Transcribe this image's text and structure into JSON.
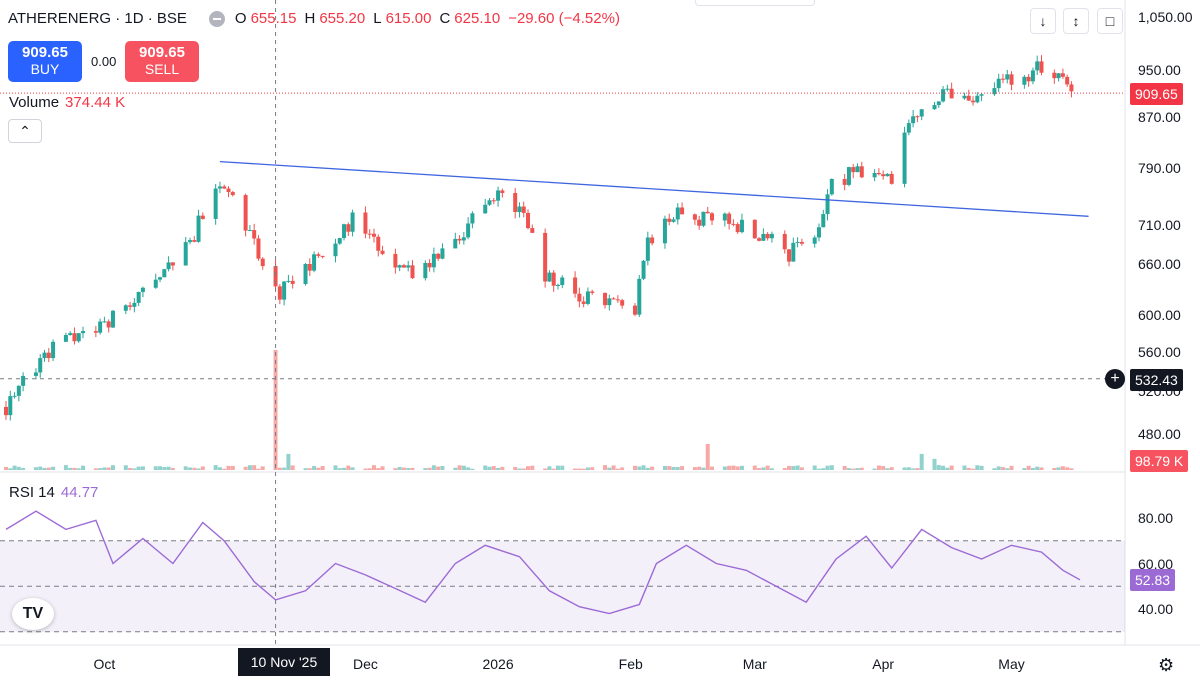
{
  "header": {
    "symbol": "ATHERENERG · 1D · BSE",
    "o_label": "O",
    "o_value": "655.15",
    "h_label": "H",
    "h_value": "655.20",
    "l_label": "L",
    "l_value": "615.00",
    "c_label": "C",
    "c_value": "625.10",
    "change": "−29.60 (−4.52%)"
  },
  "trade": {
    "buy_price": "909.65",
    "buy_label": "BUY",
    "spread": "0.00",
    "sell_price": "909.65",
    "sell_label": "SELL"
  },
  "volume": {
    "label": "Volume",
    "value": "374.44 K"
  },
  "rsi": {
    "label": "RSI 14",
    "value": "44.77"
  },
  "toolbar": {
    "arrow_icon": "arrow-down-icon",
    "collapse_icon": "collapse-icon",
    "restore_icon": "restore-icon"
  },
  "badges": {
    "last_price": "909.65",
    "crosshair_price": "532.43",
    "volume_last": "98.79 K",
    "rsi_last": "52.83",
    "crosshair_date": "10 Nov '25"
  },
  "colors": {
    "up": "#26a69a",
    "down": "#ef5350",
    "rsi": "#9c6ad5",
    "trendline": "#3f66e0",
    "accent": "#2962ff"
  },
  "chart_data": {
    "type": "candlestick",
    "price_axis": {
      "ticks": [
        1050,
        950,
        870,
        790,
        710,
        660,
        600,
        560,
        520,
        480
      ],
      "labels": [
        "1,050.00",
        "950.00",
        "870.00",
        "790.00",
        "710.00",
        "660.00",
        "600.00",
        "560.00",
        "520.00",
        "480.00"
      ],
      "scale": "log"
    },
    "rsi_axis": {
      "ticks": [
        80,
        60,
        40
      ],
      "labels": [
        "80.00",
        "60.00",
        "40.00"
      ],
      "band": [
        30,
        70
      ]
    },
    "time_axis": {
      "labels": [
        "Oct",
        "Dec",
        "2026",
        "Feb",
        "Mar",
        "Apr",
        "May"
      ],
      "dates": [
        "2025-10-01",
        "2025-12-01",
        "2026-01-01",
        "2026-02-01",
        "2026-03-02",
        "2026-04-01",
        "2026-05-01"
      ]
    },
    "waypoints": [
      [
        "2025-09-08",
        505
      ],
      [
        "2025-09-12",
        530
      ],
      [
        "2025-09-18",
        560
      ],
      [
        "2025-09-25",
        578
      ],
      [
        "2025-10-01",
        590
      ],
      [
        "2025-10-08",
        612
      ],
      [
        "2025-10-15",
        650
      ],
      [
        "2025-10-22",
        700
      ],
      [
        "2025-10-27",
        760
      ],
      [
        "2025-10-30",
        750
      ],
      [
        "2025-11-04",
        700
      ],
      [
        "2025-11-07",
        655
      ],
      [
        "2025-11-10",
        625
      ],
      [
        "2025-11-17",
        650
      ],
      [
        "2025-11-24",
        690
      ],
      [
        "2025-11-28",
        715
      ],
      [
        "2025-12-05",
        680
      ],
      [
        "2025-12-12",
        650
      ],
      [
        "2025-12-18",
        665
      ],
      [
        "2025-12-24",
        705
      ],
      [
        "2026-01-01",
        750
      ],
      [
        "2026-01-06",
        735
      ],
      [
        "2026-01-12",
        650
      ],
      [
        "2026-01-20",
        620
      ],
      [
        "2026-01-28",
        615
      ],
      [
        "2026-02-02",
        610
      ],
      [
        "2026-02-05",
        690
      ],
      [
        "2026-02-12",
        722
      ],
      [
        "2026-02-20",
        718
      ],
      [
        "2026-02-26",
        710
      ],
      [
        "2026-03-04",
        700
      ],
      [
        "2026-03-10",
        675
      ],
      [
        "2026-03-16",
        700
      ],
      [
        "2026-03-20",
        770
      ],
      [
        "2026-03-27",
        790
      ],
      [
        "2026-04-03",
        775
      ],
      [
        "2026-04-08",
        880
      ],
      [
        "2026-04-15",
        905
      ],
      [
        "2026-04-22",
        885
      ],
      [
        "2026-04-28",
        930
      ],
      [
        "2026-05-05",
        935
      ],
      [
        "2026-05-08",
        960
      ],
      [
        "2026-05-14",
        930
      ],
      [
        "2026-05-17",
        910
      ]
    ],
    "volume_spikes": [
      {
        "date": "2025-11-10",
        "value": 1950
      },
      {
        "date": "2025-11-13",
        "value": 260
      },
      {
        "date": "2026-02-19",
        "value": 420
      },
      {
        "date": "2026-04-10",
        "value": 260
      },
      {
        "date": "2026-04-13",
        "value": 180
      }
    ],
    "trendline": {
      "start": {
        "date": "2025-10-28",
        "price": 800
      },
      "end": {
        "date": "2026-05-19",
        "price": 722
      }
    },
    "rsi_series": [
      [
        "2025-09-08",
        75
      ],
      [
        "2025-09-15",
        83
      ],
      [
        "2025-09-22",
        75
      ],
      [
        "2025-09-29",
        79
      ],
      [
        "2025-10-03",
        60
      ],
      [
        "2025-10-10",
        71
      ],
      [
        "2025-10-17",
        60
      ],
      [
        "2025-10-24",
        78
      ],
      [
        "2025-10-29",
        70
      ],
      [
        "2025-11-05",
        52
      ],
      [
        "2025-11-10",
        44
      ],
      [
        "2025-11-17",
        48
      ],
      [
        "2025-11-24",
        60
      ],
      [
        "2025-12-01",
        55
      ],
      [
        "2025-12-08",
        49
      ],
      [
        "2025-12-15",
        43
      ],
      [
        "2025-12-22",
        60
      ],
      [
        "2025-12-29",
        68
      ],
      [
        "2026-01-06",
        63
      ],
      [
        "2026-01-13",
        48
      ],
      [
        "2026-01-20",
        41
      ],
      [
        "2026-01-27",
        38
      ],
      [
        "2026-02-03",
        42
      ],
      [
        "2026-02-07",
        60
      ],
      [
        "2026-02-14",
        68
      ],
      [
        "2026-02-21",
        60
      ],
      [
        "2026-02-28",
        57
      ],
      [
        "2026-03-07",
        50
      ],
      [
        "2026-03-14",
        43
      ],
      [
        "2026-03-21",
        62
      ],
      [
        "2026-03-28",
        72
      ],
      [
        "2026-04-03",
        58
      ],
      [
        "2026-04-10",
        75
      ],
      [
        "2026-04-17",
        67
      ],
      [
        "2026-04-24",
        62
      ],
      [
        "2026-05-01",
        68
      ],
      [
        "2026-05-08",
        65
      ],
      [
        "2026-05-13",
        57
      ],
      [
        "2026-05-17",
        52.83
      ]
    ],
    "crosshair": {
      "date": "2025-11-10",
      "price": 532.43
    }
  }
}
